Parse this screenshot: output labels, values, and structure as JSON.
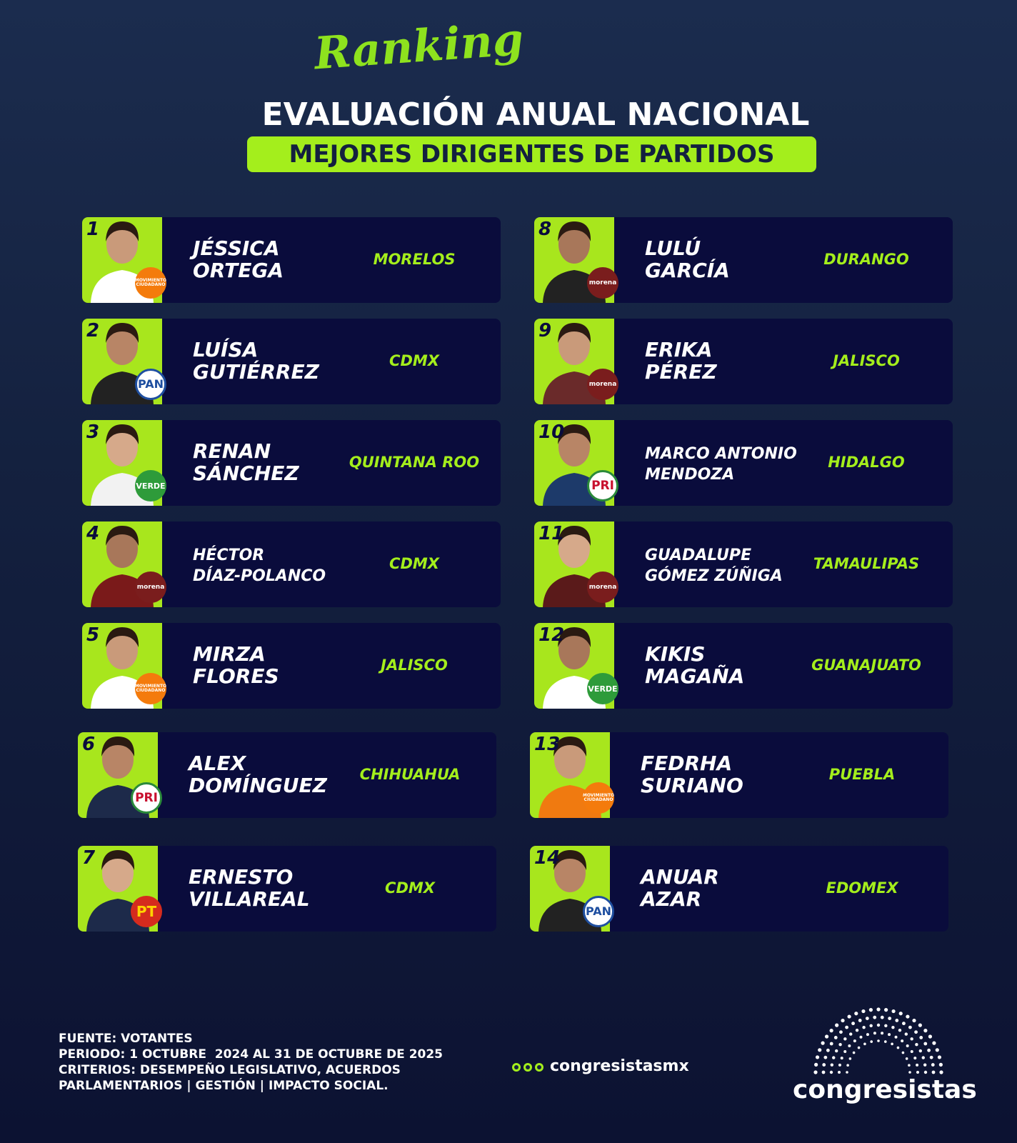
{
  "header": {
    "script_title": "Ranking",
    "title": "EVALUACIÓN ANUAL NACIONAL",
    "subtitle": "MEJORES DIRIGENTES DE PARTIDOS"
  },
  "entries": [
    {
      "rank": 1,
      "name": [
        "JÉSSICA",
        "ORTEGA"
      ],
      "state": "MORELOS",
      "party": "MOVIMIENTO CIUDADANO"
    },
    {
      "rank": 2,
      "name": [
        "LUÍSA",
        "GUTIÉRREZ"
      ],
      "state": "CDMX",
      "party": "PAN"
    },
    {
      "rank": 3,
      "name": [
        "RENAN",
        "SÁNCHEZ"
      ],
      "state": "QUINTANA ROO",
      "party": "VERDE"
    },
    {
      "rank": 4,
      "name": [
        "HÉCTOR",
        "DÍAZ-POLANCO"
      ],
      "state": "CDMX",
      "party": "morena"
    },
    {
      "rank": 5,
      "name": [
        "MIRZA",
        "FLORES"
      ],
      "state": "JALISCO",
      "party": "MOVIMIENTO CIUDADANO"
    },
    {
      "rank": 6,
      "name": [
        "ALEX",
        "DOMÍNGUEZ"
      ],
      "state": "CHIHUAHUA",
      "party": "PRI"
    },
    {
      "rank": 7,
      "name": [
        "ERNESTO",
        "VILLAREAL"
      ],
      "state": "CDMX",
      "party": "PT"
    },
    {
      "rank": 8,
      "name": [
        "LULÚ",
        "GARCÍA"
      ],
      "state": "DURANGO",
      "party": "morena"
    },
    {
      "rank": 9,
      "name": [
        "ERIKA",
        "PÉREZ"
      ],
      "state": "JALISCO",
      "party": "morena"
    },
    {
      "rank": 10,
      "name": [
        "MARCO ANTONIO",
        "MENDOZA"
      ],
      "state": "HIDALGO",
      "party": "PRI"
    },
    {
      "rank": 11,
      "name": [
        "GUADALUPE",
        "GÓMEZ ZÚÑIGA"
      ],
      "state": "TAMAULIPAS",
      "party": "morena"
    },
    {
      "rank": 12,
      "name": [
        "KIKIS",
        "MAGAÑA"
      ],
      "state": "GUANAJUATO",
      "party": "VERDE"
    },
    {
      "rank": 13,
      "name": [
        "FEDRHA",
        "SURIANO"
      ],
      "state": "PUEBLA",
      "party": "MOVIMIENTO CIUDADANO"
    },
    {
      "rank": 14,
      "name": [
        "ANUAR",
        "AZAR"
      ],
      "state": "EDOMEX",
      "party": "PAN"
    }
  ],
  "footer": {
    "lines": [
      "FUENTE: VOTANTES",
      "PERIODO: 1 OCTUBRE  2024 AL 31 DE OCTUBRE DE 2025",
      "CRITERIOS: DESEMPEÑO LEGISLATIVO, ACUERDOS",
      "PARLAMENTARIOS | GESTIÓN | IMPACTO SOCIAL."
    ],
    "social": "congresistasmx",
    "brand": "congresistas"
  }
}
